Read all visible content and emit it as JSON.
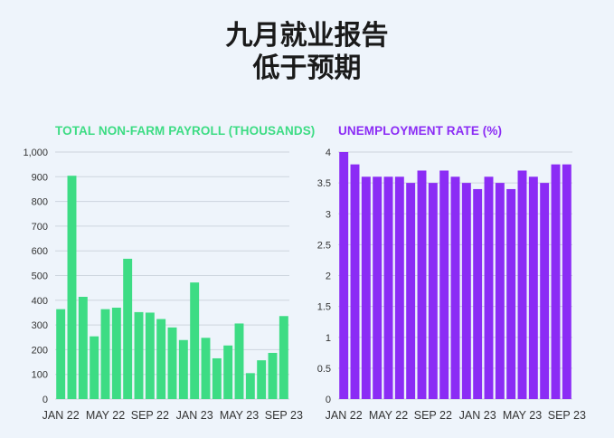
{
  "title": {
    "line1": "九月就业报告",
    "line2": "低于预期"
  },
  "colors": {
    "payroll": "#3ddc84",
    "unemployment": "#8b2cf5"
  },
  "chart_data": [
    {
      "type": "bar",
      "title": "TOTAL NON-FARM PAYROLL (THOUSANDS)",
      "categories": [
        "Jan 22",
        "Feb 22",
        "Mar 22",
        "Apr 22",
        "May 22",
        "Jun 22",
        "Jul 22",
        "Aug 22",
        "Sep 22",
        "Oct 22",
        "Nov 22",
        "Dec 22",
        "Jan 23",
        "Feb 23",
        "Mar 23",
        "Apr 23",
        "May 23",
        "Jun 23",
        "Jul 23",
        "Aug 23",
        "Sep 23"
      ],
      "values": [
        364,
        904,
        414,
        254,
        364,
        370,
        568,
        352,
        350,
        324,
        290,
        239,
        472,
        248,
        165,
        217,
        306,
        105,
        157,
        187,
        336
      ],
      "xtick_labels": [
        "JAN 22",
        "MAY 22",
        "SEP 22",
        "JAN 23",
        "MAY 23",
        "SEP 23"
      ],
      "ytick_labels": [
        "0",
        "100",
        "200",
        "300",
        "400",
        "500",
        "600",
        "700",
        "800",
        "900",
        "1,000"
      ],
      "ylim": [
        0,
        1000
      ],
      "grid": true
    },
    {
      "type": "bar",
      "title": "UNEMPLOYMENT RATE (%)",
      "categories": [
        "Jan 22",
        "Feb 22",
        "Mar 22",
        "Apr 22",
        "May 22",
        "Jun 22",
        "Jul 22",
        "Aug 22",
        "Sep 22",
        "Oct 22",
        "Nov 22",
        "Dec 22",
        "Jan 23",
        "Feb 23",
        "Mar 23",
        "Apr 23",
        "May 23",
        "Jun 23",
        "Jul 23",
        "Aug 23",
        "Sep 23"
      ],
      "values": [
        4.0,
        3.8,
        3.6,
        3.6,
        3.6,
        3.6,
        3.5,
        3.7,
        3.5,
        3.7,
        3.6,
        3.5,
        3.4,
        3.6,
        3.5,
        3.4,
        3.7,
        3.6,
        3.5,
        3.8,
        3.8
      ],
      "xtick_labels": [
        "JAN 22",
        "MAY 22",
        "SEP 22",
        "JAN 23",
        "MAY 23",
        "SEP 23"
      ],
      "ytick_labels": [
        "0",
        "0.5",
        "1",
        "1.5",
        "2",
        "2.5",
        "3",
        "3.5",
        "4"
      ],
      "ylim": [
        0,
        4
      ],
      "grid": true
    }
  ]
}
